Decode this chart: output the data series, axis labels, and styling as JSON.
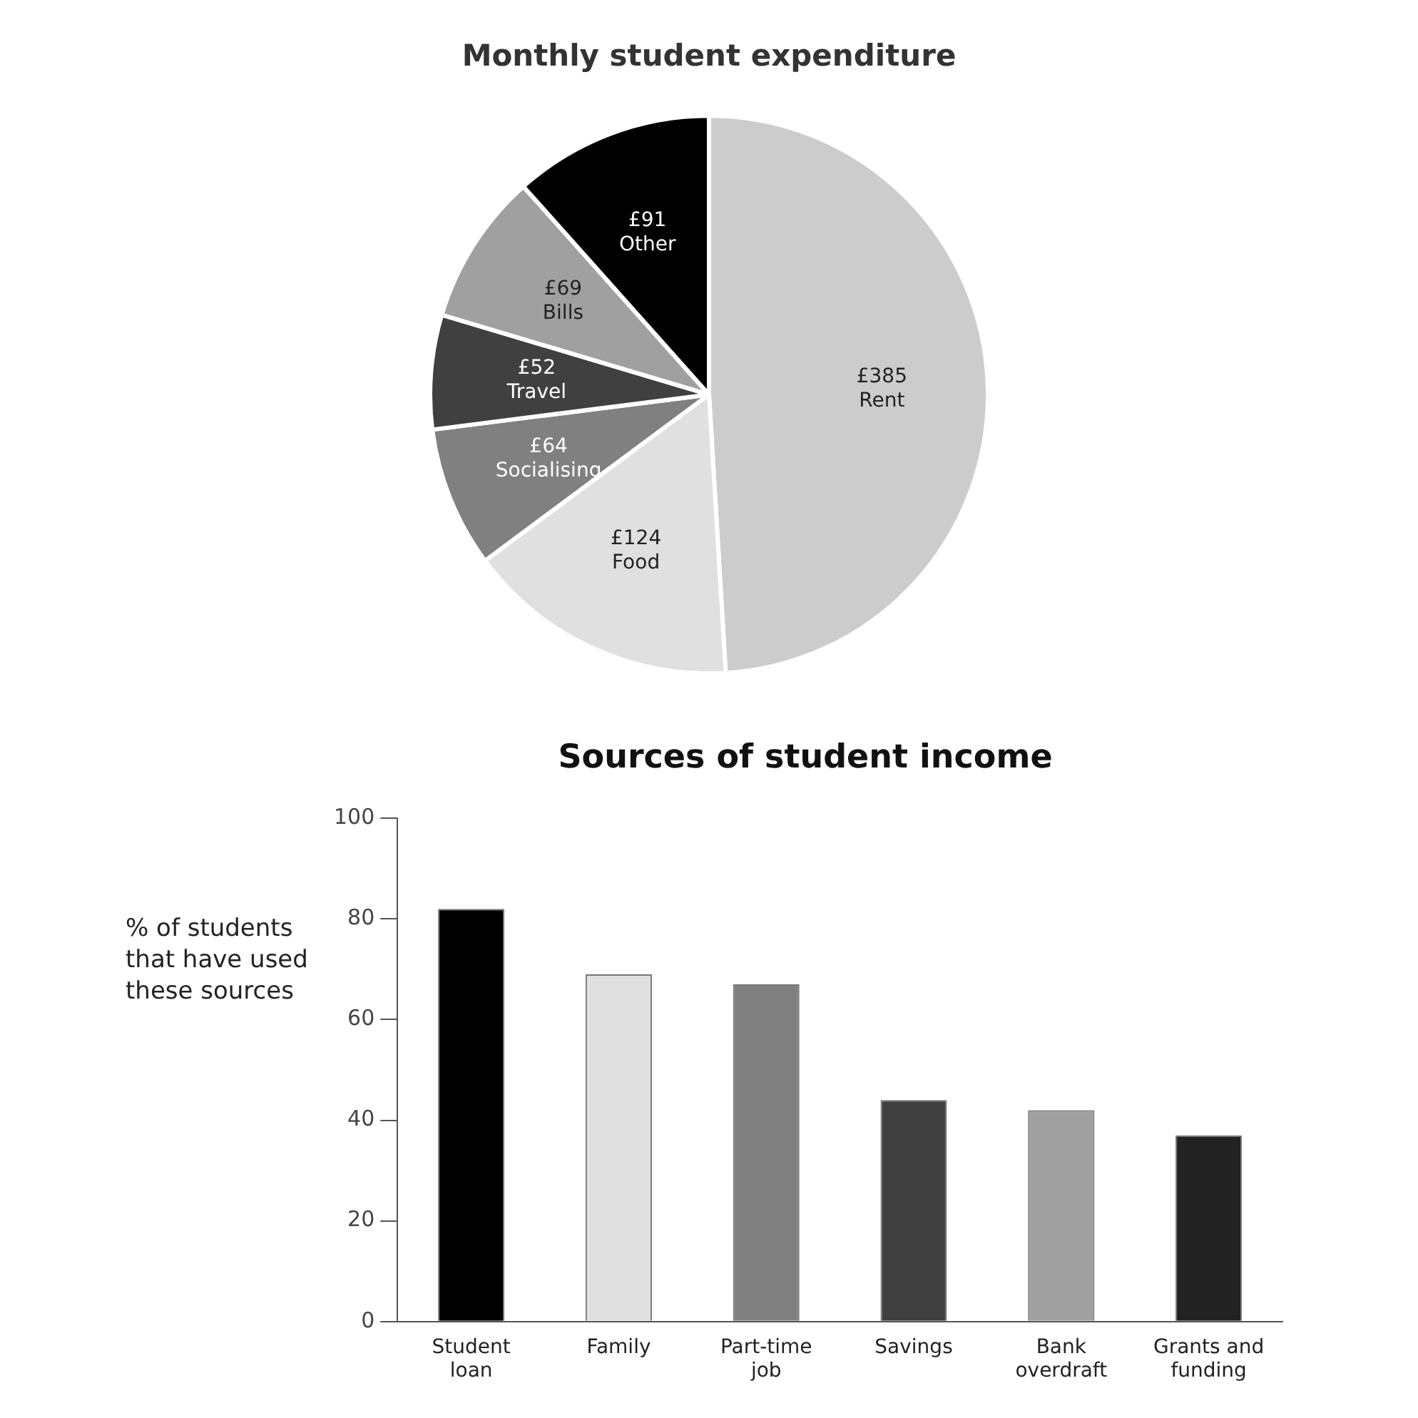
{
  "chart_data": [
    {
      "type": "pie",
      "title": "Monthly student expenditure",
      "categories": [
        "Rent",
        "Food",
        "Socialising",
        "Travel",
        "Bills",
        "Other"
      ],
      "values": [
        385,
        124,
        64,
        52,
        69,
        91
      ],
      "value_labels": [
        "£385",
        "£124",
        "£64",
        "£52",
        "£69",
        "£91"
      ],
      "colors": [
        "#cccccc",
        "#e0e0e0",
        "#808080",
        "#404040",
        "#a0a0a0",
        "#000000"
      ],
      "legend": false
    },
    {
      "type": "bar",
      "title": "Sources of student income",
      "ylabel": "% of students that have used these sources",
      "categories": [
        "Student loan",
        "Family",
        "Part-time job",
        "Savings",
        "Bank overdraft",
        "Grants and funding"
      ],
      "values": [
        82,
        69,
        67,
        44,
        42,
        37
      ],
      "colors": [
        "#000000",
        "#e0e0e0",
        "#808080",
        "#404040",
        "#a0a0a0",
        "#222222"
      ],
      "ylim": [
        0,
        100
      ],
      "yticks": [
        0,
        20,
        40,
        60,
        80,
        100
      ],
      "grid": false,
      "legend": false
    }
  ]
}
